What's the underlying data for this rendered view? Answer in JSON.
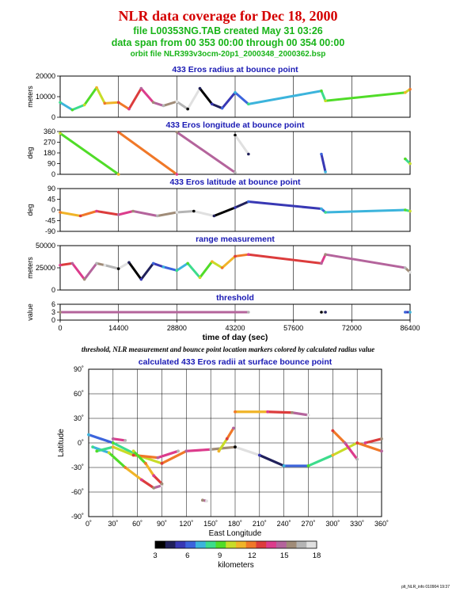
{
  "header": {
    "title": "NLR data coverage for Dec 18, 2000",
    "file_line": "file L00353NG.TAB created May 31 03:26",
    "span_line": "data span from 00 353 00:00 through 00 354 00:00",
    "orbit_line": "orbit file NLR393v3ocm-20p1_2000348_2000362.bsp"
  },
  "caption": "threshold, NLR measurement and bounce point location markers colored by calculated radius value",
  "footer_stamp": "plt_NLR_info 010904 19:37",
  "colors": {
    "title": "#d40000",
    "subtitle": "#19b419",
    "panel_title": "#1a1ab4"
  },
  "chart_data": [
    {
      "type": "scatter",
      "title": "433 Eros radius at bounce point",
      "ylabel": "meters",
      "ylim": [
        0,
        25000
      ],
      "yticks": [
        "20000",
        "10000",
        "0"
      ],
      "xlim": [
        0,
        86400
      ],
      "grid": true,
      "segments": [
        {
          "x": [
            0,
            3000,
            6000,
            9000,
            11000,
            14400,
            17000,
            20000,
            23000,
            25500,
            28800,
            31500,
            34500,
            37500,
            40000,
            43200,
            46500,
            64500,
            65500,
            85200,
            86400
          ],
          "y": [
            9000,
            4500,
            7500,
            18000,
            8500,
            9000,
            5000,
            17500,
            9000,
            7000,
            9500,
            5000,
            17500,
            8000,
            5500,
            15000,
            8000,
            16000,
            10000,
            15000,
            17000
          ]
        }
      ]
    },
    {
      "type": "scatter",
      "title": "433 Eros longitude at bounce point",
      "ylabel": "deg",
      "ylim": [
        0,
        360
      ],
      "yticks": [
        "360",
        "270",
        "180",
        "90",
        "0"
      ],
      "xlim": [
        0,
        86400
      ],
      "grid": true,
      "segments": [
        {
          "x": [
            0,
            14400
          ],
          "y": [
            345,
            0
          ]
        },
        {
          "x": [
            14400,
            28800
          ],
          "y": [
            355,
            0
          ]
        },
        {
          "x": [
            28800,
            43200
          ],
          "y": [
            355,
            15
          ]
        },
        {
          "x": [
            43200,
            46500
          ],
          "y": [
            330,
            170
          ]
        },
        {
          "x": [
            64500,
            65500
          ],
          "y": [
            170,
            20
          ]
        },
        {
          "x": [
            85200,
            86400
          ],
          "y": [
            130,
            90
          ]
        }
      ]
    },
    {
      "type": "scatter",
      "title": "433 Eros latitude at bounce point",
      "ylabel": "deg",
      "ylim": [
        -90,
        90
      ],
      "yticks": [
        "90",
        "45",
        "0",
        "-45",
        "-90"
      ],
      "xlim": [
        0,
        86400
      ],
      "grid": true,
      "segments": [
        {
          "x": [
            0,
            5000,
            9000,
            14400,
            18000,
            24000,
            28800,
            33000,
            38000,
            43200,
            46500,
            64500,
            65500,
            85200,
            86400
          ],
          "y": [
            -10,
            -25,
            -5,
            -20,
            -5,
            -25,
            -10,
            -5,
            -25,
            10,
            35,
            5,
            -10,
            0,
            -5
          ]
        }
      ]
    },
    {
      "type": "scatter",
      "title": "range measurement",
      "ylabel": "meters",
      "ylim": [
        0,
        50000
      ],
      "yticks": [
        "50000",
        "25000",
        "0"
      ],
      "xlim": [
        0,
        86400
      ],
      "grid": true,
      "segments": [
        {
          "x": [
            0,
            3000,
            6000,
            9000,
            11000,
            14400,
            17000,
            20000,
            23000,
            25500,
            28800,
            31500,
            34500,
            37500,
            40000,
            43200,
            46500,
            64500,
            65500,
            85200,
            86400
          ],
          "y": [
            28000,
            30000,
            12000,
            30000,
            28000,
            24000,
            31000,
            12000,
            30000,
            26000,
            22000,
            30000,
            14000,
            32000,
            25000,
            38000,
            40000,
            30000,
            40000,
            25000,
            20000
          ]
        }
      ]
    },
    {
      "type": "scatter",
      "title": "threshold",
      "ylabel": "value",
      "ylim": [
        0,
        6
      ],
      "yticks": [
        "6",
        "3",
        "0"
      ],
      "xlim": [
        0,
        86400
      ],
      "xticks": [
        "0",
        "14400",
        "28800",
        "43200",
        "57600",
        "72000",
        "86400"
      ],
      "xlabel": "time of day (sec)",
      "grid": true,
      "segments": [
        {
          "x": [
            0,
            46500
          ],
          "y": [
            3,
            3
          ]
        },
        {
          "x": [
            64500,
            65500
          ],
          "y": [
            3,
            3
          ]
        },
        {
          "x": [
            85200,
            86400
          ],
          "y": [
            3,
            3
          ]
        }
      ]
    },
    {
      "type": "scatter",
      "title": "calculated 433 Eros radii at surface bounce point",
      "xlabel": "East Longitude",
      "ylabel": "Latitude",
      "xlim": [
        0,
        360
      ],
      "ylim": [
        -90,
        90
      ],
      "xticks": [
        "0˚",
        "30˚",
        "60˚",
        "90˚",
        "120˚",
        "150˚",
        "180˚",
        "210˚",
        "240˚",
        "270˚",
        "300˚",
        "330˚",
        "360˚"
      ],
      "yticks": [
        "90˚",
        "60˚",
        "30˚",
        "0˚",
        "-30˚",
        "-60˚",
        "-90˚"
      ],
      "grid": true,
      "tracks": [
        {
          "lon": [
            0,
            30,
            60,
            90,
            120,
            150,
            180,
            210,
            240,
            270,
            300,
            330,
            360
          ],
          "lat": [
            10,
            0,
            -15,
            -25,
            -10,
            -8,
            -5,
            -15,
            -28,
            -28,
            -15,
            0,
            -10
          ]
        },
        {
          "lon": [
            5,
            25,
            45,
            65,
            80,
            90
          ],
          "lat": [
            -5,
            -12,
            -30,
            -45,
            -55,
            -52
          ]
        },
        {
          "lon": [
            10,
            30,
            55,
            85,
            110
          ],
          "lat": [
            -10,
            -5,
            -15,
            -18,
            -10
          ]
        },
        {
          "lon": [
            55,
            70,
            80,
            90
          ],
          "lat": [
            -10,
            -25,
            -40,
            -50
          ]
        },
        {
          "lon": [
            160,
            170,
            178
          ],
          "lat": [
            -10,
            5,
            18
          ]
        },
        {
          "lon": [
            180,
            220,
            250,
            270
          ],
          "lat": [
            38,
            38,
            37,
            34
          ]
        },
        {
          "lon": [
            300,
            315,
            330
          ],
          "lat": [
            15,
            0,
            -20
          ]
        },
        {
          "lon": [
            340,
            360
          ],
          "lat": [
            0,
            5
          ]
        },
        {
          "lon": [
            30,
            45
          ],
          "lat": [
            5,
            3
          ]
        },
        {
          "lon": [
            140,
            145
          ],
          "lat": [
            -70,
            -71
          ]
        }
      ]
    }
  ],
  "colorbar": {
    "ticks": [
      "3",
      "6",
      "9",
      "12",
      "15",
      "18"
    ],
    "label": "kilometers",
    "range": [
      3,
      18
    ],
    "colors": [
      "#000000",
      "#20205a",
      "#3838b4",
      "#3c64dc",
      "#3cb4dc",
      "#3cdc8c",
      "#50dc28",
      "#c8dc28",
      "#f0b428",
      "#f07828",
      "#dc3c3c",
      "#dc3c8c",
      "#b4649c",
      "#a08c78",
      "#b4b4b4",
      "#e0e0e0"
    ]
  }
}
